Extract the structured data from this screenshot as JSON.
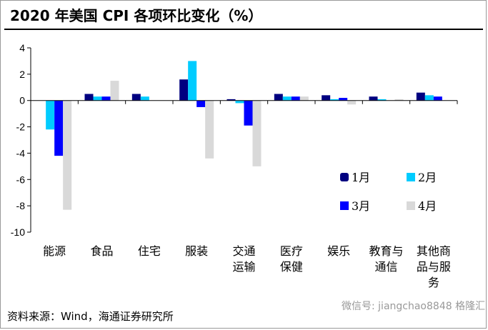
{
  "title": "2020 年美国 CPI 各项环比变化（%）",
  "source": "资料来源：Wind，海通证券研究所",
  "watermark": "微信号: jiangchao8848  格隆汇",
  "chart_data": {
    "type": "bar",
    "title": "2020 年美国 CPI 各项环比变化（%）",
    "categories": [
      [
        "能源"
      ],
      [
        "食品"
      ],
      [
        "住宅"
      ],
      [
        "服装"
      ],
      [
        "交通",
        "运输"
      ],
      [
        "医疗",
        "保健"
      ],
      [
        "娱乐"
      ],
      [
        "教育与",
        "通信"
      ],
      [
        "其他商",
        "品与服",
        "务"
      ]
    ],
    "ylim": [
      -10,
      4
    ],
    "yticks": [
      4,
      2,
      0,
      -2,
      -4,
      -6,
      -8,
      -10
    ],
    "legend_position": "bottom-right-inside",
    "series": [
      {
        "name": "1月",
        "color": "#000080",
        "values": [
          0,
          0.5,
          0.5,
          1.6,
          0.1,
          0.5,
          0.4,
          0.3,
          0.6
        ]
      },
      {
        "name": "2月",
        "color": "#00CCFF",
        "values": [
          -2.2,
          0.3,
          0.3,
          3.0,
          -0.2,
          0.3,
          0.1,
          0.1,
          0.4
        ]
      },
      {
        "name": "3月",
        "color": "#0000FF",
        "values": [
          -4.2,
          0.3,
          0,
          -0.5,
          -1.9,
          0.3,
          0.2,
          0,
          0.3
        ]
      },
      {
        "name": "4月",
        "color": "#D9D9D9",
        "values": [
          -8.3,
          1.5,
          0,
          -4.4,
          -5.0,
          0.3,
          -0.3,
          0.1,
          0
        ]
      }
    ]
  }
}
